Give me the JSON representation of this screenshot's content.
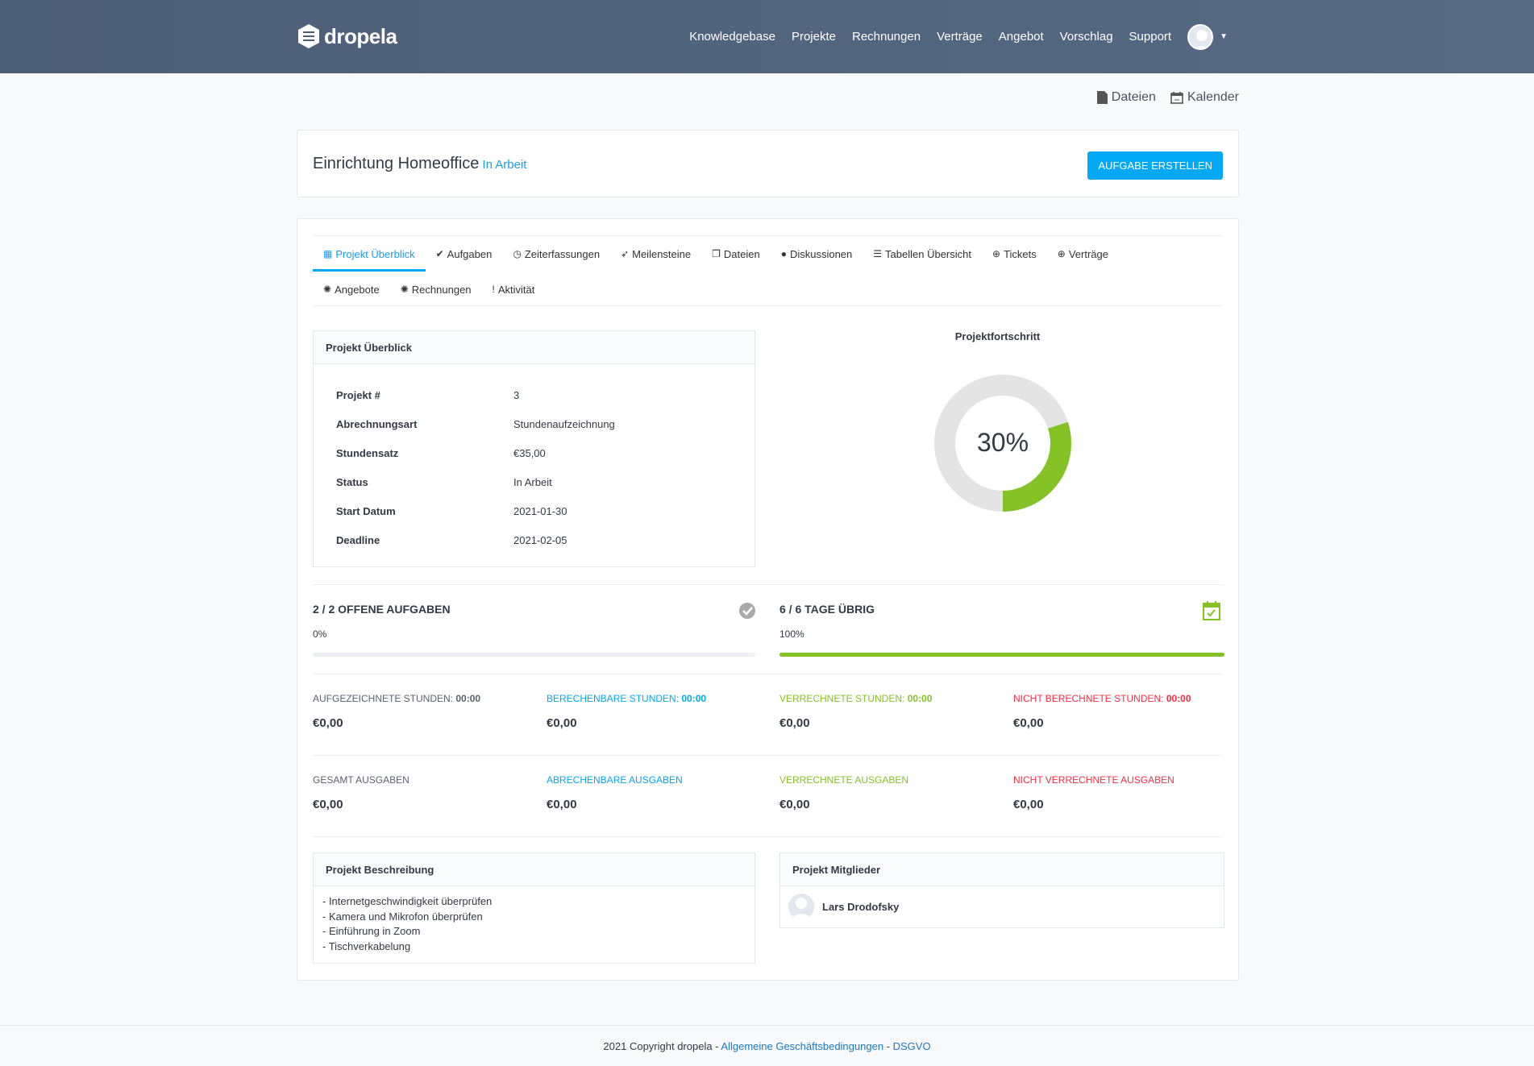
{
  "brand": {
    "name": "dropela"
  },
  "nav": [
    "Knowledgebase",
    "Projekte",
    "Rechnungen",
    "Verträge",
    "Angebot",
    "Vorschlag",
    "Support"
  ],
  "toplinks": {
    "files": "Dateien",
    "calendar": "Kalender"
  },
  "project": {
    "title": "Einrichtung Homeoffice",
    "status": "In Arbeit",
    "create_task": "AUFGABE ERSTELLEN"
  },
  "tabs": [
    {
      "label": "Projekt Überblick",
      "icon": "grid-icon",
      "active": true
    },
    {
      "label": "Aufgaben",
      "icon": "check-circle-icon"
    },
    {
      "label": "Zeiterfassungen",
      "icon": "clock-icon"
    },
    {
      "label": "Meilensteine",
      "icon": "rocket-icon"
    },
    {
      "label": "Dateien",
      "icon": "files-icon"
    },
    {
      "label": "Diskussionen",
      "icon": "comment-icon"
    },
    {
      "label": "Tabellen Übersicht",
      "icon": "list-icon"
    },
    {
      "label": "Tickets",
      "icon": "lifebuoy-icon"
    },
    {
      "label": "Verträge",
      "icon": "lifebuoy-icon"
    },
    {
      "label": "Angebote",
      "icon": "cog-icon"
    },
    {
      "label": "Rechnungen",
      "icon": "cog-icon"
    },
    {
      "label": "Aktivität",
      "icon": "exclamation-icon"
    }
  ],
  "overview": {
    "title": "Projekt Überblick",
    "rows": [
      {
        "k": "Projekt #",
        "v": "3"
      },
      {
        "k": "Abrechnungsart",
        "v": "Stundenaufzeichnung"
      },
      {
        "k": "Stundensatz",
        "v": "€35,00"
      },
      {
        "k": "Status",
        "v": "In Arbeit"
      },
      {
        "k": "Start Datum",
        "v": "2021-01-30"
      },
      {
        "k": "Deadline",
        "v": "2021-02-05"
      }
    ]
  },
  "progress": {
    "title": "Projektfortschritt",
    "percent": 30,
    "label": "30%",
    "color": "#84c225"
  },
  "tasks": {
    "title": "2 / 2 OFFENE AUFGABEN",
    "percent_label": "0%",
    "percent": 0
  },
  "days": {
    "title": "6 / 6 TAGE ÜBRIG",
    "percent_label": "100%",
    "percent": 100
  },
  "stats": [
    {
      "label": "AUFGEZEICHNETE STUNDEN:",
      "time": "00:00",
      "value": "€0,00",
      "color": "#5a6270"
    },
    {
      "label": "BERECHENBARE STUNDEN:",
      "time": "00:00",
      "value": "€0,00",
      "color": "#03a9f4"
    },
    {
      "label": "VERRECHNETE STUNDEN:",
      "time": "00:00",
      "value": "€0,00",
      "color": "#84c225"
    },
    {
      "label": "NICHT BERECHNETE STUNDEN:",
      "time": "00:00",
      "value": "€0,00",
      "color": "#fc2d42"
    }
  ],
  "expenses": [
    {
      "label": "GESAMT AUSGABEN",
      "value": "€0,00",
      "color": "#5a6270"
    },
    {
      "label": "ABRECHENBARE AUSGABEN",
      "value": "€0,00",
      "color": "#03a9f4"
    },
    {
      "label": "VERRECHNETE AUSGABEN",
      "value": "€0,00",
      "color": "#84c225"
    },
    {
      "label": "NICHT VERRECHNETE AUSGABEN",
      "value": "€0,00",
      "color": "#fc2d42"
    }
  ],
  "description": {
    "title": "Projekt Beschreibung",
    "lines": [
      "- Internetgeschwindigkeit überprüfen",
      "- Kamera und Mikrofon überprüfen",
      "- Einführung in Zoom",
      "- Tischverkabelung"
    ]
  },
  "members": {
    "title": "Projekt Mitglieder",
    "list": [
      "Lars Drodofsky"
    ]
  },
  "footer": {
    "copyright": "2021 Copyright dropela - ",
    "terms": "Allgemeine Geschäftsbedingungen",
    "sep": " - ",
    "privacy": "DSGVO"
  }
}
